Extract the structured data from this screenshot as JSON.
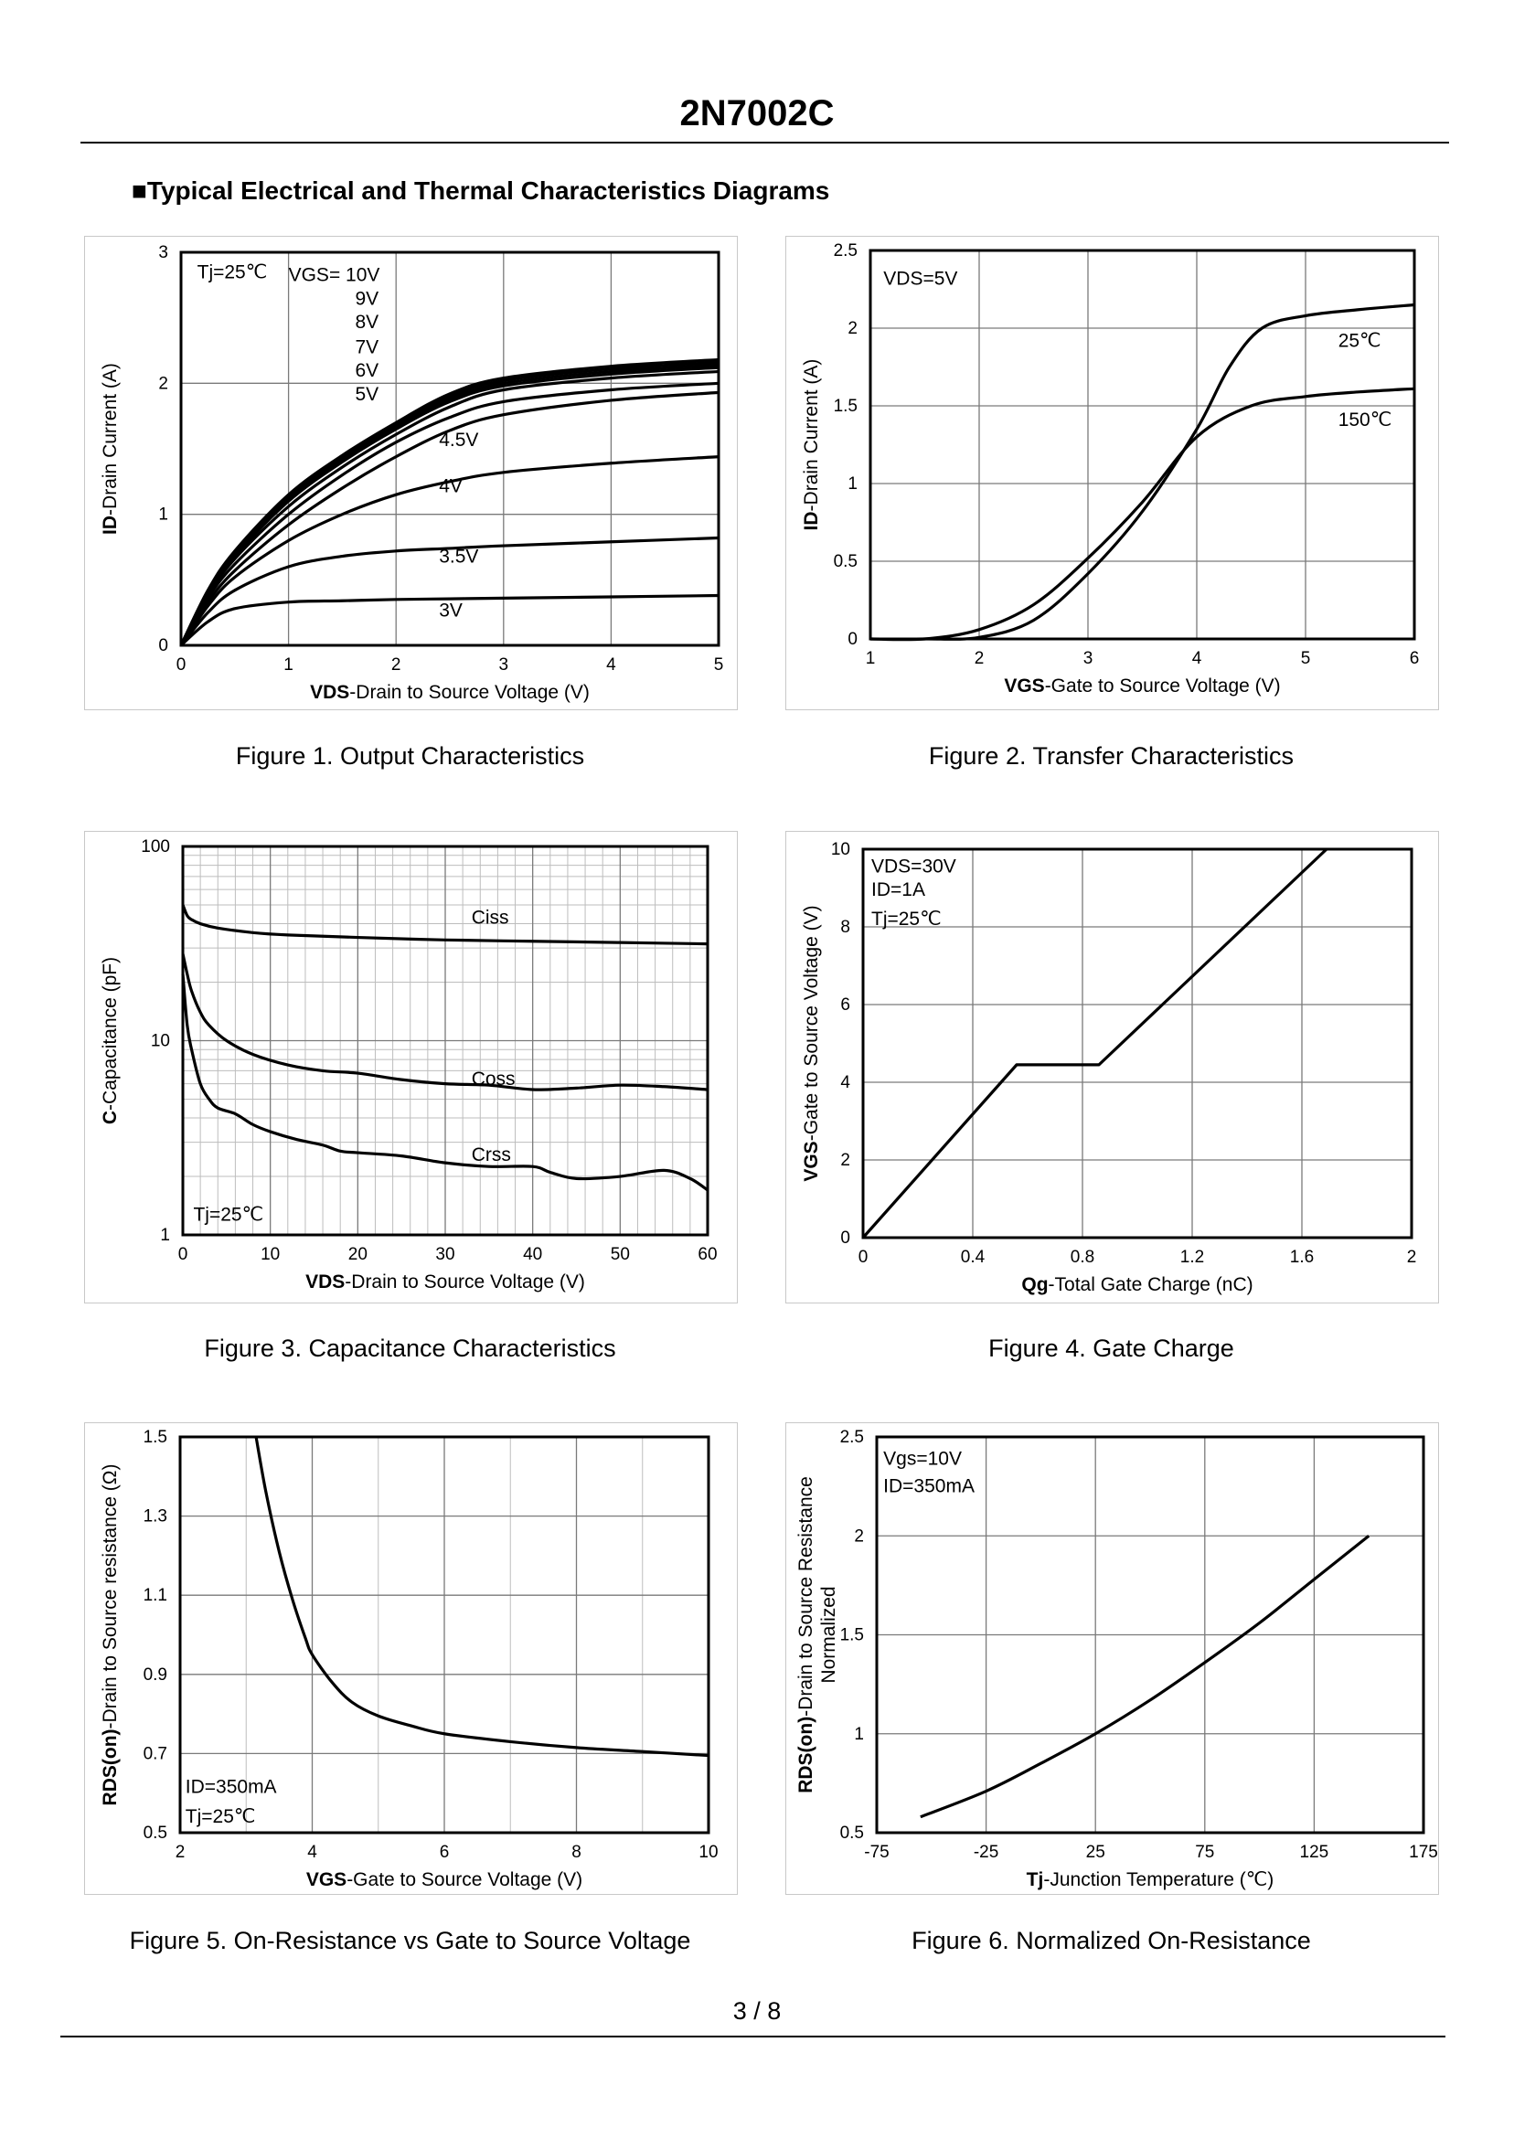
{
  "document": {
    "title": "2N7002C",
    "section_heading": "■Typical Electrical and Thermal Characteristics Diagrams",
    "page": "3 / 8"
  },
  "chart_data": [
    {
      "id": "fig1",
      "type": "line",
      "caption": "Figure 1.  Output Characteristics",
      "xlabel_bold": "VDS",
      "xlabel_rest": "-Drain to Source Voltage (V)",
      "ylabel_bold": "ID",
      "ylabel_rest": "-Drain Current (A)",
      "xlim": [
        0,
        5
      ],
      "ylim": [
        0,
        3
      ],
      "xticks": [
        "0",
        "1",
        "2",
        "3",
        "4",
        "5"
      ],
      "yticks": [
        "0",
        "1",
        "2",
        "3"
      ],
      "xtick_values": [
        0,
        1,
        2,
        3,
        4,
        5
      ],
      "ytick_values": [
        0,
        1,
        2,
        3
      ],
      "grid": true,
      "annotations": [
        {
          "text": "Tj=25℃",
          "x": 0.15,
          "y": 2.8
        },
        {
          "text": "VGS= 10V",
          "x": 1.0,
          "y": 2.78
        },
        {
          "text": "9V",
          "x": 1.62,
          "y": 2.6
        },
        {
          "text": "8V",
          "x": 1.62,
          "y": 2.42
        },
        {
          "text": "7V",
          "x": 1.62,
          "y": 2.23
        },
        {
          "text": "6V",
          "x": 1.62,
          "y": 2.05
        },
        {
          "text": "5V",
          "x": 1.62,
          "y": 1.87
        },
        {
          "text": "4.5V",
          "x": 2.4,
          "y": 1.52
        },
        {
          "text": "4V",
          "x": 2.4,
          "y": 1.17
        },
        {
          "text": "3.5V",
          "x": 2.4,
          "y": 0.63
        },
        {
          "text": "3V",
          "x": 2.4,
          "y": 0.22
        }
      ],
      "series": [
        {
          "name": "10V",
          "x": [
            0,
            0.25,
            0.5,
            1,
            1.5,
            2,
            2.5,
            3,
            4,
            5
          ],
          "y": [
            0,
            0.42,
            0.72,
            1.15,
            1.45,
            1.7,
            1.92,
            2.04,
            2.13,
            2.18
          ]
        },
        {
          "name": "9V",
          "x": [
            0,
            0.25,
            0.5,
            1,
            1.5,
            2,
            2.5,
            3,
            4,
            5
          ],
          "y": [
            0,
            0.41,
            0.71,
            1.13,
            1.43,
            1.68,
            1.9,
            2.02,
            2.11,
            2.16
          ]
        },
        {
          "name": "8V",
          "x": [
            0,
            0.25,
            0.5,
            1,
            1.5,
            2,
            2.5,
            3,
            4,
            5
          ],
          "y": [
            0,
            0.4,
            0.7,
            1.12,
            1.42,
            1.67,
            1.88,
            2.0,
            2.09,
            2.14
          ]
        },
        {
          "name": "7V",
          "x": [
            0,
            0.25,
            0.5,
            1,
            1.5,
            2,
            2.5,
            3,
            4,
            5
          ],
          "y": [
            0,
            0.39,
            0.68,
            1.1,
            1.4,
            1.65,
            1.86,
            1.98,
            2.07,
            2.12
          ]
        },
        {
          "name": "6V",
          "x": [
            0,
            0.25,
            0.5,
            1,
            1.5,
            2,
            2.5,
            3,
            4,
            5
          ],
          "y": [
            0,
            0.38,
            0.66,
            1.06,
            1.36,
            1.61,
            1.82,
            1.95,
            2.04,
            2.09
          ]
        },
        {
          "name": "5V",
          "x": [
            0,
            0.25,
            0.5,
            1,
            1.5,
            2,
            2.5,
            3,
            4,
            5
          ],
          "y": [
            0,
            0.36,
            0.62,
            1.0,
            1.3,
            1.55,
            1.74,
            1.86,
            1.95,
            2.0
          ]
        },
        {
          "name": "4.5V",
          "x": [
            0,
            0.25,
            0.5,
            1,
            1.5,
            2,
            2.5,
            3,
            4,
            5
          ],
          "y": [
            0,
            0.33,
            0.57,
            0.92,
            1.2,
            1.44,
            1.64,
            1.76,
            1.87,
            1.93
          ]
        },
        {
          "name": "4V",
          "x": [
            0,
            0.25,
            0.5,
            1,
            1.5,
            2,
            2.5,
            3,
            4,
            5
          ],
          "y": [
            0,
            0.3,
            0.52,
            0.8,
            1.0,
            1.15,
            1.25,
            1.32,
            1.39,
            1.44
          ]
        },
        {
          "name": "3.5V",
          "x": [
            0,
            0.25,
            0.5,
            1,
            1.5,
            2,
            2.5,
            3,
            4,
            5
          ],
          "y": [
            0,
            0.25,
            0.42,
            0.6,
            0.68,
            0.72,
            0.74,
            0.76,
            0.79,
            0.82
          ]
        },
        {
          "name": "3V",
          "x": [
            0,
            0.25,
            0.5,
            1,
            1.5,
            2,
            2.5,
            3,
            4,
            5
          ],
          "y": [
            0,
            0.18,
            0.28,
            0.33,
            0.34,
            0.35,
            0.355,
            0.36,
            0.37,
            0.38
          ]
        }
      ]
    },
    {
      "id": "fig2",
      "type": "line",
      "caption": "Figure 2.  Transfer Characteristics",
      "xlabel_bold": "VGS",
      "xlabel_rest": "-Gate to Source Voltage (V)",
      "ylabel_bold": "ID",
      "ylabel_rest": "-Drain Current (A)",
      "xlim": [
        1,
        6
      ],
      "ylim": [
        0,
        2.5
      ],
      "xticks": [
        "1",
        "2",
        "3",
        "4",
        "5",
        "6"
      ],
      "yticks": [
        "0",
        "0.5",
        "1",
        "1.5",
        "2",
        "2.5"
      ],
      "xtick_values": [
        1,
        2,
        3,
        4,
        5,
        6
      ],
      "ytick_values": [
        0,
        0.5,
        1,
        1.5,
        2,
        2.5
      ],
      "grid": true,
      "annotations": [
        {
          "text": "VDS=5V",
          "x": 1.12,
          "y": 2.28
        },
        {
          "text": "25℃",
          "x": 5.3,
          "y": 1.88
        },
        {
          "text": "150℃",
          "x": 5.3,
          "y": 1.37
        }
      ],
      "series": [
        {
          "name": "25℃",
          "x": [
            1,
            1.5,
            2,
            2.5,
            3,
            3.5,
            4,
            4.3,
            4.6,
            5,
            5.5,
            6
          ],
          "y": [
            0,
            0,
            0.01,
            0.12,
            0.42,
            0.82,
            1.35,
            1.75,
            2.0,
            2.08,
            2.12,
            2.15
          ]
        },
        {
          "name": "150℃",
          "x": [
            1,
            1.5,
            2,
            2.5,
            3,
            3.5,
            4,
            4.5,
            5,
            5.5,
            6
          ],
          "y": [
            0,
            0,
            0.06,
            0.22,
            0.52,
            0.88,
            1.3,
            1.5,
            1.56,
            1.59,
            1.61
          ]
        }
      ]
    },
    {
      "id": "fig3",
      "type": "line",
      "caption": "Figure 3.  Capacitance Characteristics",
      "xlabel_bold": "VDS",
      "xlabel_rest": "-Drain to Source Voltage (V)",
      "ylabel_bold": "C",
      "ylabel_rest": "-Capacitance (pF)",
      "xlim": [
        0,
        60
      ],
      "ylim": [
        1,
        100
      ],
      "yscale": "log",
      "xticks": [
        "0",
        "10",
        "20",
        "30",
        "40",
        "50",
        "60"
      ],
      "yticks": [
        "1",
        "10",
        "100"
      ],
      "xtick_values": [
        0,
        10,
        20,
        30,
        40,
        50,
        60
      ],
      "ytick_values": [
        1,
        10,
        100
      ],
      "grid": true,
      "annotations": [
        {
          "text": "Ciss",
          "x": 33,
          "y": 40
        },
        {
          "text": "Coss",
          "x": 33,
          "y": 5.9
        },
        {
          "text": "Crss",
          "x": 33,
          "y": 2.4
        },
        {
          "text": "Tj=25℃",
          "x": 1.2,
          "y": 1.18
        }
      ],
      "series": [
        {
          "name": "Ciss",
          "x": [
            0,
            0.5,
            1,
            2,
            4,
            8,
            12,
            20,
            30,
            40,
            50,
            60
          ],
          "y": [
            50,
            44,
            42,
            40,
            38,
            36,
            35,
            34,
            33,
            32.5,
            32,
            31.5
          ]
        },
        {
          "name": "Coss",
          "x": [
            0,
            0.5,
            1,
            2,
            3,
            5,
            8,
            12,
            16,
            20,
            25,
            30,
            35,
            40,
            45,
            50,
            55,
            60
          ],
          "y": [
            28,
            22,
            18,
            14,
            12,
            10,
            8.5,
            7.5,
            7,
            6.8,
            6.3,
            6,
            5.9,
            5.6,
            5.7,
            5.9,
            5.8,
            5.6
          ]
        },
        {
          "name": "Crss",
          "x": [
            0,
            0.5,
            1,
            2,
            3,
            4,
            6,
            8,
            10,
            13,
            16,
            18,
            20,
            25,
            30,
            35,
            40,
            42,
            45,
            50,
            55,
            58,
            60
          ],
          "y": [
            22,
            12,
            9,
            6,
            5,
            4.5,
            4.2,
            3.7,
            3.4,
            3.1,
            2.9,
            2.7,
            2.65,
            2.55,
            2.35,
            2.25,
            2.25,
            2.1,
            1.95,
            2.0,
            2.15,
            1.95,
            1.7
          ]
        }
      ]
    },
    {
      "id": "fig4",
      "type": "line",
      "caption": "Figure 4.  Gate Charge",
      "xlabel_bold": "Qg",
      "xlabel_rest": "-Total Gate Charge (nC)",
      "ylabel_bold": "VGS",
      "ylabel_rest": "-Gate to Source Voltage (V)",
      "xlim": [
        0,
        2
      ],
      "ylim": [
        0,
        10
      ],
      "xticks": [
        "0",
        "0.4",
        "0.8",
        "1.2",
        "1.6",
        "2"
      ],
      "yticks": [
        "0",
        "2",
        "4",
        "6",
        "8",
        "10"
      ],
      "xtick_values": [
        0,
        0.4,
        0.8,
        1.2,
        1.6,
        2
      ],
      "ytick_values": [
        0,
        2,
        4,
        6,
        8,
        10
      ],
      "grid": true,
      "annotations": [
        {
          "text": "VDS=30V",
          "x": 0.03,
          "y": 9.4
        },
        {
          "text": "ID=1A",
          "x": 0.03,
          "y": 8.8
        },
        {
          "text": "Tj=25℃",
          "x": 0.03,
          "y": 8.05
        }
      ],
      "series": [
        {
          "name": "VGS",
          "x": [
            0,
            0.56,
            0.86,
            1.69
          ],
          "y": [
            0,
            4.45,
            4.45,
            10
          ]
        }
      ]
    },
    {
      "id": "fig5",
      "type": "line",
      "caption": "Figure 5.  On-Resistance vs Gate to Source Voltage",
      "xlabel_bold": "VGS",
      "xlabel_rest": "-Gate to Source Voltage (V)",
      "ylabel_bold": "RDS(on)",
      "ylabel_rest": "-Drain to Source resistance (Ω)",
      "xlim": [
        2,
        10
      ],
      "ylim": [
        0.5,
        1.5
      ],
      "xticks": [
        "2",
        "4",
        "6",
        "8",
        "10"
      ],
      "yticks": [
        "0.5",
        "0.7",
        "0.9",
        "1.1",
        "1.3",
        "1.5"
      ],
      "xtick_values": [
        2,
        4,
        6,
        8,
        10
      ],
      "ytick_values": [
        0.5,
        0.7,
        0.9,
        1.1,
        1.3,
        1.5
      ],
      "grid": true,
      "annotations": [
        {
          "text": "ID=350mA",
          "x": 2.08,
          "y": 0.6
        },
        {
          "text": "Tj=25℃",
          "x": 2.08,
          "y": 0.525
        }
      ],
      "series": [
        {
          "name": "RDS(on)",
          "x": [
            3.15,
            3.3,
            3.5,
            3.7,
            3.9,
            4.0,
            4.3,
            4.6,
            5,
            5.5,
            6,
            7,
            8,
            9,
            10
          ],
          "y": [
            1.5,
            1.36,
            1.21,
            1.09,
            0.99,
            0.95,
            0.88,
            0.83,
            0.795,
            0.77,
            0.75,
            0.73,
            0.715,
            0.705,
            0.695
          ]
        }
      ]
    },
    {
      "id": "fig6",
      "type": "line",
      "caption": "Figure 6.  Normalized On-Resistance",
      "xlabel_bold": "Tj",
      "xlabel_rest": "-Junction  Temperature (℃)",
      "ylabel_bold": "RDS(on)",
      "ylabel_rest": "-Drain to Source Resistance",
      "ylabel_line2": "Normalized",
      "xlim": [
        -75,
        175
      ],
      "ylim": [
        0.5,
        2.5
      ],
      "xticks": [
        "-75",
        "-25",
        "25",
        "75",
        "125",
        "175"
      ],
      "yticks": [
        "0.5",
        "1",
        "1.5",
        "2",
        "2.5"
      ],
      "xtick_values": [
        -75,
        -25,
        25,
        75,
        125,
        175
      ],
      "ytick_values": [
        0.5,
        1,
        1.5,
        2,
        2.5
      ],
      "grid": true,
      "annotations": [
        {
          "text": "Vgs=10V",
          "x": -72,
          "y": 2.36
        },
        {
          "text": "ID=350mA",
          "x": -72,
          "y": 2.22
        }
      ],
      "series": [
        {
          "name": "normalized",
          "x": [
            -55,
            -25,
            0,
            25,
            50,
            75,
            100,
            125,
            150
          ],
          "y": [
            0.58,
            0.71,
            0.85,
            1.0,
            1.17,
            1.36,
            1.56,
            1.78,
            2.0
          ]
        }
      ]
    }
  ]
}
